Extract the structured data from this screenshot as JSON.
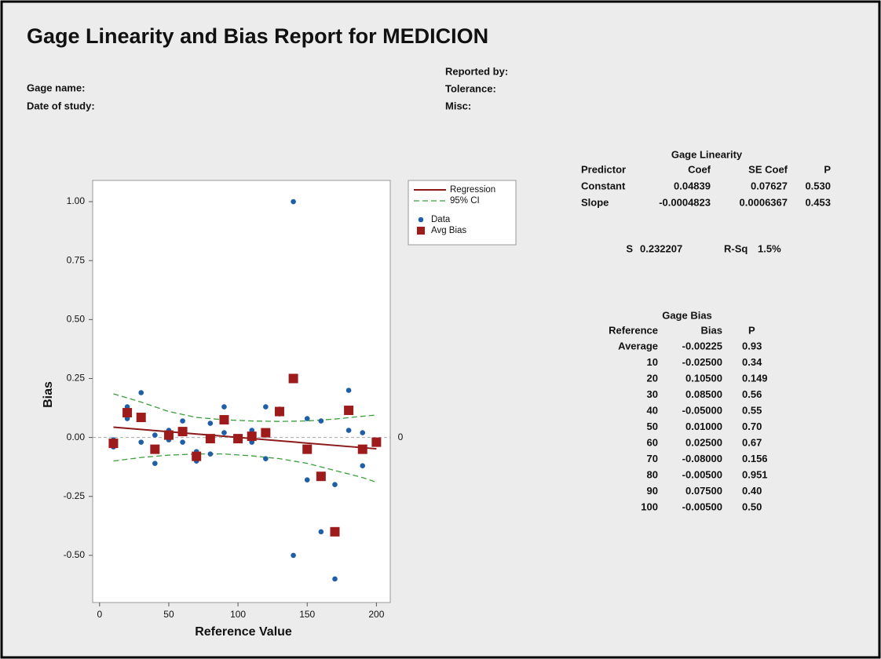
{
  "header": {
    "title": "Gage Linearity and Bias Report for MEDICION",
    "left_fields": [
      "Gage name:",
      "Date of study:"
    ],
    "right_fields": [
      "Reported by:",
      "Tolerance:",
      "Misc:"
    ]
  },
  "chart_data": {
    "type": "scatter",
    "xlabel": "Reference Value",
    "ylabel": "Bias",
    "xlim": [
      -5,
      210
    ],
    "ylim": [
      -0.7,
      1.09
    ],
    "xticks": [
      0,
      50,
      100,
      150,
      200
    ],
    "yticks": [
      {
        "value": 1,
        "label": "1.00"
      },
      {
        "value": 0.75,
        "label": "0.75"
      },
      {
        "value": 0.5,
        "label": "0.50"
      },
      {
        "value": 0.25,
        "label": "0.25"
      },
      {
        "value": 0,
        "label": "0.00"
      },
      {
        "value": -0.25,
        "label": "-0.25"
      },
      {
        "value": -0.5,
        "label": "-0.50"
      }
    ],
    "reference_line": 0,
    "series": [
      {
        "name": "95% CI",
        "type": "band",
        "color": "#3a9e3a",
        "x": [
          10,
          30,
          50,
          70,
          90,
          110,
          130,
          150,
          170,
          190,
          200
        ],
        "upper": [
          0.185,
          0.15,
          0.11,
          0.085,
          0.075,
          0.07,
          0.068,
          0.07,
          0.078,
          0.09,
          0.095
        ],
        "lower": [
          -0.1,
          -0.085,
          -0.075,
          -0.07,
          -0.07,
          -0.078,
          -0.09,
          -0.11,
          -0.14,
          -0.17,
          -0.19
        ]
      },
      {
        "name": "Regression",
        "type": "line",
        "color": "#8b1a1a",
        "x": [
          10,
          200
        ],
        "values": [
          0.0436,
          -0.0481
        ]
      },
      {
        "name": "Data",
        "type": "points",
        "marker": "circle",
        "color": "#1f5fa8",
        "x": [
          10,
          10,
          10,
          20,
          20,
          30,
          30,
          40,
          40,
          50,
          50,
          60,
          60,
          70,
          70,
          80,
          80,
          90,
          90,
          100,
          100,
          110,
          110,
          120,
          120,
          130,
          130,
          140,
          140,
          150,
          150,
          160,
          160,
          170,
          170,
          180,
          180,
          190,
          190,
          200,
          200
        ],
        "values": [
          -0.01,
          -0.03,
          -0.04,
          0.13,
          0.08,
          0.19,
          -0.02,
          0.01,
          -0.11,
          0.03,
          -0.01,
          0.07,
          -0.02,
          -0.06,
          -0.1,
          0.06,
          -0.07,
          0.13,
          0.02,
          0,
          -0.01,
          0.03,
          -0.02,
          0.13,
          -0.09,
          0.12,
          0.1,
          1,
          -0.5,
          0.08,
          -0.18,
          0.07,
          -0.4,
          -0.2,
          -0.6,
          0.2,
          0.03,
          0.02,
          -0.12,
          -0.02,
          -0.02
        ]
      },
      {
        "name": "Avg Bias",
        "type": "points",
        "marker": "square",
        "color": "#9e1b1b",
        "x": [
          10,
          20,
          30,
          40,
          50,
          60,
          70,
          80,
          90,
          100,
          110,
          120,
          130,
          140,
          150,
          160,
          170,
          180,
          190,
          200
        ],
        "values": [
          -0.025,
          0.105,
          0.085,
          -0.05,
          0.01,
          0.025,
          -0.08,
          -0.005,
          0.075,
          -0.005,
          0.005,
          0.02,
          0.11,
          0.25,
          -0.05,
          -0.165,
          -0.4,
          0.115,
          -0.05,
          -0.02
        ]
      }
    ]
  },
  "gage_linearity": {
    "title": "Gage Linearity",
    "columns": [
      "Predictor",
      "Coef",
      "SE Coef",
      "P"
    ],
    "rows": [
      [
        "Constant",
        "0.04839",
        "0.07627",
        "0.530"
      ],
      [
        "Slope",
        "-0.0004823",
        "0.0006367",
        "0.453"
      ]
    ],
    "summary": [
      "S",
      "0.232207",
      "R-Sq",
      "1.5%"
    ]
  },
  "gage_bias": {
    "title": "Gage Bias",
    "columns": [
      "Reference",
      "Bias",
      "P"
    ],
    "rows": [
      [
        "Average",
        "-0.00225",
        "0.93"
      ],
      [
        "10",
        "-0.02500",
        "0.34"
      ],
      [
        "20",
        "0.10500",
        "0.149"
      ],
      [
        "30",
        "0.08500",
        "0.56"
      ],
      [
        "40",
        "-0.05000",
        "0.55"
      ],
      [
        "50",
        "0.01000",
        "0.70"
      ],
      [
        "60",
        "0.02500",
        "0.67"
      ],
      [
        "70",
        "-0.08000",
        "0.156"
      ],
      [
        "80",
        "-0.00500",
        "0.951"
      ],
      [
        "90",
        "0.07500",
        "0.40"
      ],
      [
        "100",
        "-0.00500",
        "0.50"
      ]
    ]
  }
}
